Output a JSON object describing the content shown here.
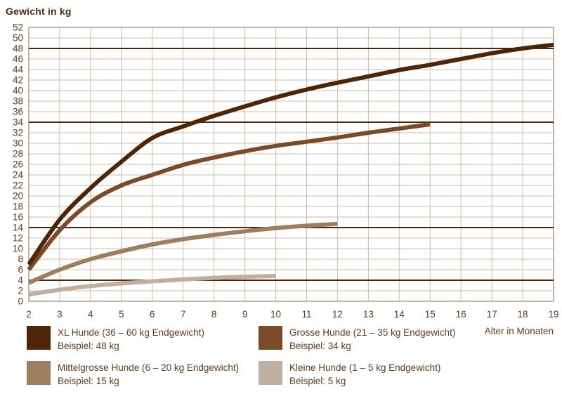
{
  "title": "Gewicht in kg",
  "colors": {
    "background": "#ffffff",
    "grid": "#ccbcaa",
    "plot_border": "#a28e77",
    "reference_line": "#4e2506",
    "text": "#5e3c20",
    "title_text": "#4c2c12"
  },
  "chart_data": {
    "type": "line",
    "title": "Gewicht in kg",
    "xlabel": "Alter in Monaten",
    "ylabel": "Gewicht in kg",
    "xlim": [
      2,
      19
    ],
    "ylim": [
      0,
      52
    ],
    "grid": true,
    "x_ticks": [
      2,
      3,
      4,
      5,
      6,
      7,
      8,
      9,
      10,
      11,
      12,
      13,
      14,
      15,
      16,
      17,
      18,
      19
    ],
    "y_ticks": [
      0,
      2,
      4,
      6,
      8,
      10,
      12,
      14,
      16,
      18,
      20,
      22,
      24,
      26,
      28,
      30,
      32,
      34,
      36,
      38,
      40,
      42,
      44,
      46,
      48,
      50,
      52
    ],
    "reference_lines": [
      48,
      34,
      14,
      4
    ],
    "legend_position": "bottom",
    "series": [
      {
        "name": "XL Hunde (36 – 60 kg Endgewicht)",
        "example": "Beispiel: 48 kg",
        "color": "#4e2506",
        "x": [
          2,
          3,
          4,
          5,
          6,
          7,
          8,
          9,
          10,
          11,
          12,
          13,
          14,
          15,
          16,
          17,
          18,
          19
        ],
        "values": [
          7,
          15.5,
          21.5,
          26.5,
          31,
          33.2,
          35.2,
          37,
          38.7,
          40.2,
          41.5,
          42.7,
          43.9,
          44.9,
          46,
          47.1,
          48,
          48.7
        ]
      },
      {
        "name": "Grosse Hunde (21 – 35 kg Endgewicht)",
        "example": "Beispiel: 34 kg",
        "color": "#7b4b27",
        "x": [
          2,
          3,
          4,
          5,
          6,
          7,
          8,
          9,
          10,
          11,
          12,
          13,
          14,
          15
        ],
        "values": [
          6,
          13.5,
          18.8,
          22,
          24,
          25.9,
          27.3,
          28.5,
          29.5,
          30.3,
          31.1,
          32,
          32.8,
          33.6
        ]
      },
      {
        "name": "Mittelgrosse Hunde (6 – 20 kg Endgewicht)",
        "example": "Beispiel: 15 kg",
        "color": "#9d7e5e",
        "x": [
          2,
          3,
          4,
          5,
          6,
          7,
          8,
          9,
          10,
          11,
          12
        ],
        "values": [
          3.5,
          6,
          8,
          9.5,
          10.8,
          11.8,
          12.6,
          13.3,
          13.9,
          14.35,
          14.7
        ]
      },
      {
        "name": "Kleine Hunde (1 – 5 kg Endgewicht)",
        "example": "Beispiel: 5 kg",
        "color": "#beafa0",
        "x": [
          2,
          3,
          4,
          5,
          6,
          7,
          8,
          9,
          10
        ],
        "values": [
          1.3,
          2.2,
          2.9,
          3.4,
          3.8,
          4.15,
          4.45,
          4.65,
          4.8
        ]
      }
    ]
  }
}
